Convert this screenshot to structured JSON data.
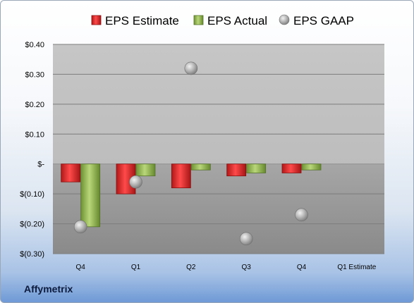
{
  "company": "Affymetrix",
  "chart_data": {
    "type": "bar",
    "categories": [
      "Q4",
      "Q1",
      "Q2",
      "Q3",
      "Q4",
      "Q1 Estimate"
    ],
    "series": [
      {
        "name": "EPS Estimate",
        "type": "bar",
        "color": "#d62728",
        "values": [
          -0.06,
          -0.1,
          -0.08,
          -0.04,
          -0.03,
          null
        ]
      },
      {
        "name": "EPS Actual",
        "type": "bar",
        "color": "#8cb04a",
        "values": [
          -0.21,
          -0.04,
          -0.02,
          -0.03,
          -0.02,
          null
        ]
      },
      {
        "name": "EPS GAAP",
        "type": "scatter",
        "color": "#b7b7b7",
        "values": [
          -0.21,
          -0.06,
          0.32,
          -0.25,
          -0.17,
          null
        ]
      }
    ],
    "ylim": [
      -0.3,
      0.4
    ],
    "yticks": [
      0.4,
      0.3,
      0.2,
      0.1,
      0.0,
      -0.1,
      -0.2,
      -0.3
    ],
    "ytick_labels": [
      "$0.40",
      "$0.30",
      "$0.20",
      "$0.10",
      "$-",
      "$(0.10)",
      "$(0.20)",
      "$(0.30)"
    ],
    "legend_position": "top",
    "grid": true
  }
}
